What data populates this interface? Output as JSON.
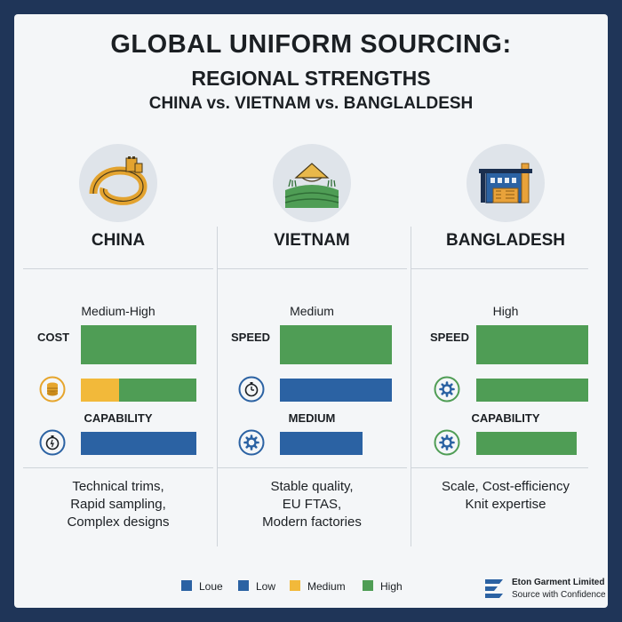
{
  "title": {
    "line1": "GLOBAL UNIFORM SOURCING:",
    "line2": "REGIONAL STRENGTHS",
    "line3": "CHINA vs. VIETNAM vs. BANGLALDESH"
  },
  "columns": [
    {
      "name": "CHINA",
      "icon": "great-wall-icon",
      "level": "Medium-High",
      "metric1": {
        "label": "COST",
        "level": "High"
      },
      "metric2": {
        "icon": "coins-icon",
        "level": "Medium"
      },
      "metric3": {
        "label": "CAPABILITY",
        "icon": "stopwatch-icon",
        "level": "Low"
      },
      "description": [
        "Technical trims,",
        "Rapid sampling,",
        "Complex designs"
      ]
    },
    {
      "name": "VIETNAM",
      "icon": "conical-hat-fields-icon",
      "level": "Medium",
      "metric1": {
        "label": "SPEED",
        "level": "High"
      },
      "metric2": {
        "icon": "stopwatch-icon",
        "level": "Low"
      },
      "metric3": {
        "label": "MEDIUM",
        "icon": "gear-icon",
        "level": "Low"
      },
      "description": [
        "Stable quality,",
        "EU FTAS,",
        "Modern factories"
      ]
    },
    {
      "name": "BANGLADESH",
      "icon": "factory-icon",
      "level": "High",
      "metric1": {
        "label": "SPEED",
        "level": "High"
      },
      "metric2": {
        "icon": "gear-icon",
        "level": "High"
      },
      "metric3": {
        "label": "CAPABILITY",
        "icon": "gear-icon",
        "level": "High"
      },
      "description": [
        "Scale, Cost-efficiency",
        "Knit expertise"
      ]
    }
  ],
  "legend": [
    {
      "label": "Loue",
      "color": "#2b62a3"
    },
    {
      "label": "Low",
      "color": "#2b62a3"
    },
    {
      "label": "Medium",
      "color": "#f2b93a"
    },
    {
      "label": "High",
      "color": "#4f9d55"
    }
  ],
  "brand": {
    "name": "Eton Garment Limited",
    "tagline": "Source with Confidence",
    "icon": "eton-logo-icon"
  },
  "colors": {
    "high": "#4f9d55",
    "low": "#2b62a3",
    "medium": "#f2b93a",
    "frame": "#1f3558"
  }
}
